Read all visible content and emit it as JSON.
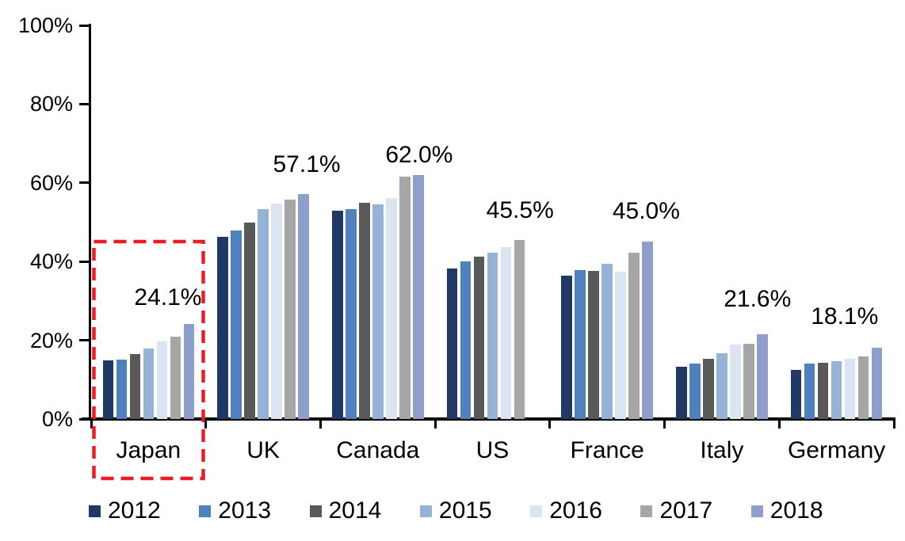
{
  "chart_data": {
    "type": "bar",
    "title": "",
    "categories": [
      "Japan",
      "UK",
      "Canada",
      "US",
      "France",
      "Italy",
      "Germany"
    ],
    "series": [
      {
        "name": "2012",
        "color": "#1F3864",
        "values": [
          14.8,
          46.3,
          52.9,
          38.3,
          36.5,
          13.2,
          12.5
        ]
      },
      {
        "name": "2013",
        "color": "#4F81BD",
        "values": [
          15.0,
          47.8,
          53.3,
          40.1,
          37.8,
          14.0,
          14.0
        ]
      },
      {
        "name": "2014",
        "color": "#595959",
        "values": [
          16.5,
          49.9,
          54.9,
          41.2,
          37.6,
          15.2,
          14.2
        ]
      },
      {
        "name": "2015",
        "color": "#95B3D7",
        "values": [
          18.0,
          53.3,
          54.5,
          42.3,
          39.4,
          16.8,
          14.6
        ]
      },
      {
        "name": "2016",
        "color": "#DBE5F1",
        "values": [
          19.8,
          54.8,
          56.2,
          43.7,
          37.4,
          18.9,
          15.2
        ]
      },
      {
        "name": "2017",
        "color": "#A6A6A6",
        "values": [
          21.0,
          55.8,
          61.5,
          45.5,
          42.3,
          19.1,
          15.8
        ]
      },
      {
        "name": "2018",
        "color": "#8F9FCC",
        "values": [
          24.1,
          57.1,
          62.0,
          null,
          45.0,
          21.6,
          18.1
        ]
      }
    ],
    "data_labels": [
      "24.1%",
      "57.1%",
      "62.0%",
      "45.5%",
      "45.0%",
      "21.6%",
      "18.1%"
    ],
    "y_ticks": [
      "0%",
      "20%",
      "40%",
      "60%",
      "80%",
      "100%"
    ],
    "ylim": [
      0,
      100
    ],
    "xlabel": "",
    "ylabel": "",
    "grid": false,
    "legend_position": "bottom",
    "highlight": {
      "category": "Japan",
      "style": "dashed-box",
      "color": "#ED1C24"
    }
  }
}
